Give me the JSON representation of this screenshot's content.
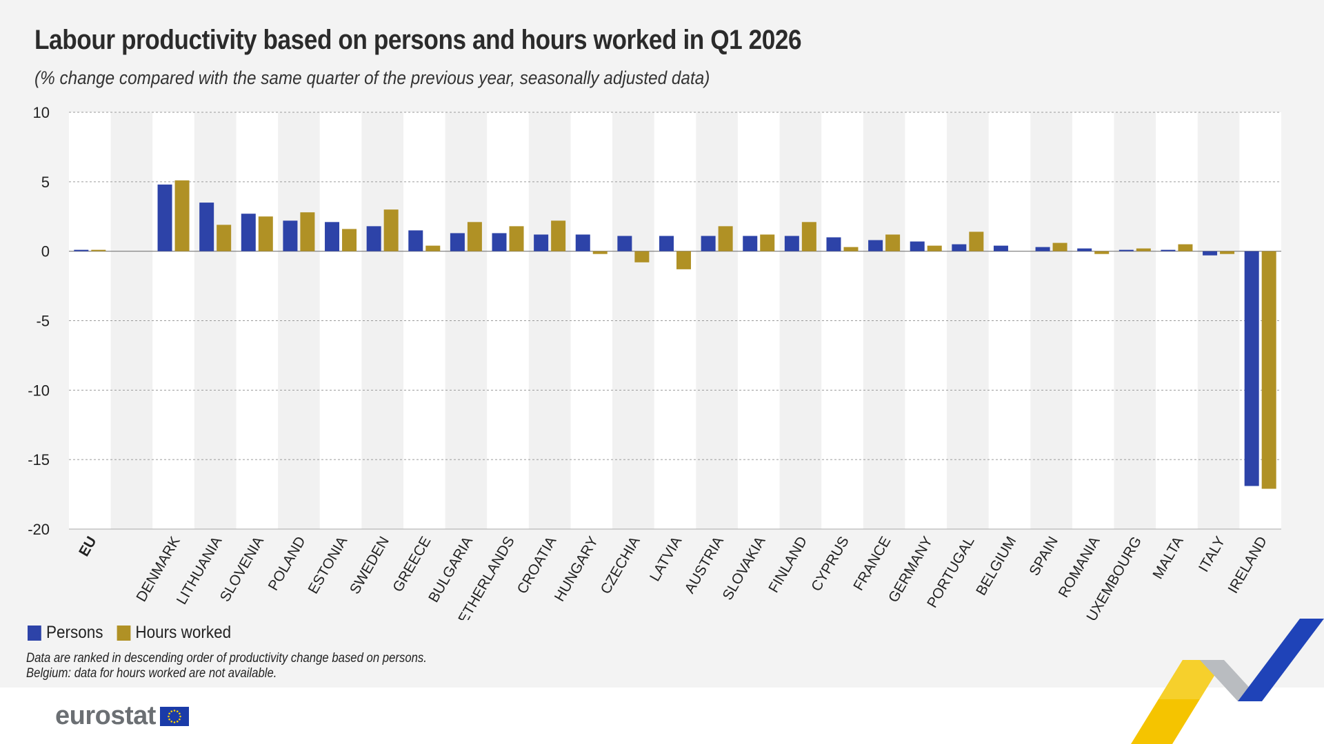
{
  "title": "Labour productivity based on persons and hours worked in Q1 2026",
  "subtitle": "(% change compared with the same quarter of the previous year, seasonally adjusted data)",
  "legend": {
    "persons": "Persons",
    "hours": "Hours worked"
  },
  "notes": [
    "Data are ranked in descending order of productivity change based on persons.",
    "Belgium: data for hours worked are not available."
  ],
  "logo": {
    "text": "eurostat"
  },
  "colors": {
    "persons": "#2d43a8",
    "hours": "#b09125",
    "panel": "#f3f3f3",
    "grid": "#9a9a9a"
  },
  "chart_data": {
    "type": "bar",
    "ylim": [
      -20,
      10
    ],
    "yticks": [
      10,
      5,
      0,
      -5,
      -10,
      -15,
      -20
    ],
    "grid": true,
    "legend_position": "bottom-left",
    "categories": [
      "EU",
      "",
      "DENMARK",
      "LITHUANIA",
      "SLOVENIA",
      "POLAND",
      "ESTONIA",
      "SWEDEN",
      "GREECE",
      "BULGARIA",
      "NETHERLANDS",
      "CROATIA",
      "HUNGARY",
      "CZECHIA",
      "LATVIA",
      "AUSTRIA",
      "SLOVAKIA",
      "FINLAND",
      "CYPRUS",
      "FRANCE",
      "GERMANY",
      "PORTUGAL",
      "BELGIUM",
      "SPAIN",
      "ROMANIA",
      "LUXEMBOURG",
      "MALTA",
      "ITALY",
      "IRELAND"
    ],
    "series": [
      {
        "name": "Persons",
        "values": [
          0.1,
          null,
          4.8,
          3.5,
          2.7,
          2.2,
          2.1,
          1.8,
          1.5,
          1.3,
          1.3,
          1.2,
          1.2,
          1.1,
          1.1,
          1.1,
          1.1,
          1.1,
          1.0,
          0.8,
          0.7,
          0.5,
          0.4,
          0.3,
          0.2,
          0.1,
          0.1,
          -0.3,
          -16.9
        ]
      },
      {
        "name": "Hours worked",
        "values": [
          0.1,
          null,
          5.1,
          1.9,
          2.5,
          2.8,
          1.6,
          3.0,
          0.4,
          2.1,
          1.8,
          2.2,
          -0.2,
          -0.8,
          -1.3,
          1.8,
          1.2,
          2.1,
          0.3,
          1.2,
          0.4,
          1.4,
          null,
          0.6,
          -0.2,
          0.2,
          0.5,
          -0.2,
          -17.1
        ]
      }
    ]
  }
}
